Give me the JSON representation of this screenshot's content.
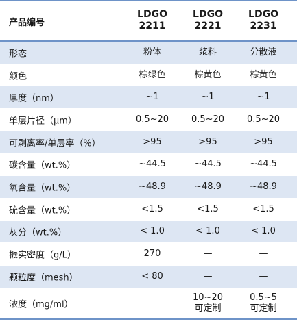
{
  "header": {
    "label": "产品编号",
    "columns": [
      {
        "line1": "LDGO",
        "line2": "2211"
      },
      {
        "line1": "LDGO",
        "line2": "2221"
      },
      {
        "line1": "LDGO",
        "line2": "2231"
      }
    ]
  },
  "rows": [
    {
      "label": "形态",
      "values": [
        "粉体",
        "浆料",
        "分散液"
      ]
    },
    {
      "label": "颜色",
      "values": [
        "棕绿色",
        "棕黄色",
        "棕黄色"
      ]
    },
    {
      "label": "厚度（nm）",
      "values": [
        "~1",
        "~1",
        "~1"
      ]
    },
    {
      "label": "单层片径（μm）",
      "values": [
        "0.5~20",
        "0.5~20",
        "0.5~20"
      ]
    },
    {
      "label": "可剥离率/单层率（%）",
      "values": [
        ">95",
        ">95",
        ">95"
      ]
    },
    {
      "label": "碳含量（wt.%）",
      "values": [
        "~44.5",
        "~44.5",
        "~44.5"
      ]
    },
    {
      "label": "氧含量（wt.%）",
      "values": [
        "~48.9",
        "~48.9",
        "~48.9"
      ]
    },
    {
      "label": "硫含量（wt.%）",
      "values": [
        "<1.5",
        "<1.5",
        "<1.5"
      ]
    },
    {
      "label": "灰分（wt.%）",
      "values": [
        "< 1.0",
        "< 1.0",
        "< 1.0"
      ]
    },
    {
      "label": "振实密度（g/L）",
      "values": [
        "270",
        "—",
        "—"
      ]
    },
    {
      "label": "颗粒度（mesh）",
      "values": [
        "< 80",
        "—",
        "—"
      ]
    }
  ],
  "last_row": {
    "label": "浓度（mg/ml）",
    "values": [
      {
        "line1": "—",
        "line2": ""
      },
      {
        "line1": "10~20",
        "line2": "可定制"
      },
      {
        "line1": "0.5~5",
        "line2": "可定制"
      }
    ]
  }
}
